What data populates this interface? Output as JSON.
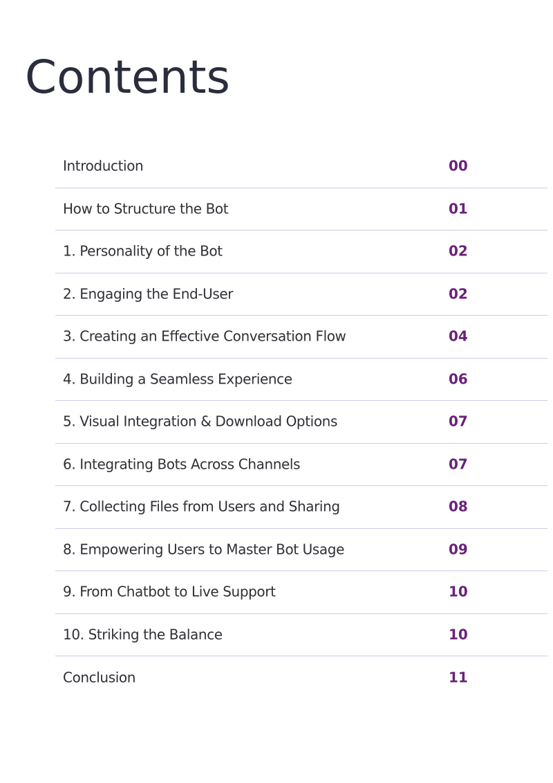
{
  "title": "Contents",
  "entries": [
    {
      "label": "Introduction",
      "page": "00"
    },
    {
      "label": "How to Structure the Bot",
      "page": "01"
    },
    {
      "label": "1. Personality of the Bot",
      "page": "02"
    },
    {
      "label": "2. Engaging the End-User",
      "page": "02"
    },
    {
      "label": "3. Creating an Effective Conversation Flow",
      "page": "04"
    },
    {
      "label": "4. Building a Seamless Experience",
      "page": "06"
    },
    {
      "label": "5. Visual Integration & Download Options",
      "page": "07"
    },
    {
      "label": "6. Integrating Bots Across Channels",
      "page": "07"
    },
    {
      "label": "7. Collecting Files from Users and Sharing",
      "page": "08"
    },
    {
      "label": "8. Empowering Users to Master Bot Usage",
      "page": "09"
    },
    {
      "label": "9. From Chatbot to Live Support",
      "page": "10"
    },
    {
      "label": "10. Striking the Balance",
      "page": "10"
    },
    {
      "label": "Conclusion",
      "page": "11"
    }
  ]
}
